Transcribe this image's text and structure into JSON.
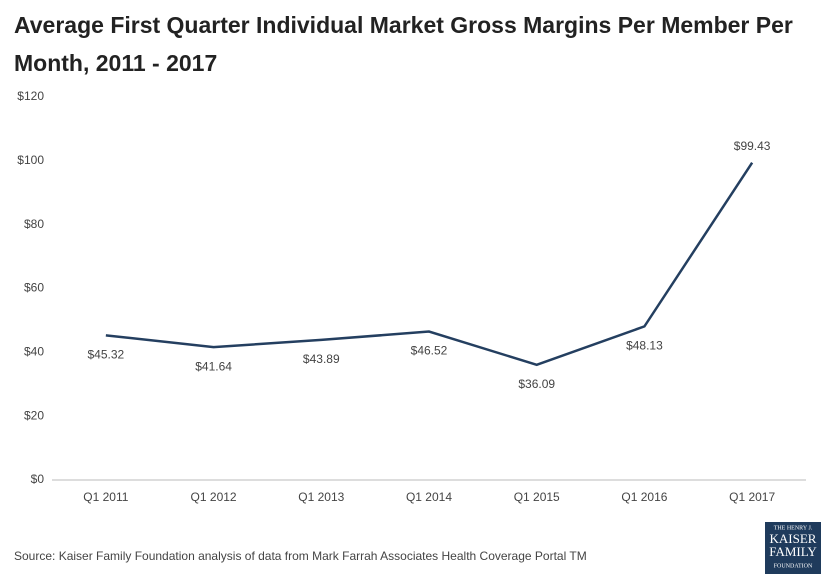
{
  "chart_data": {
    "type": "line",
    "title": "Average First Quarter Individual Market Gross Margins Per Member Per Month, 2011 - 2017",
    "categories": [
      "Q1 2011",
      "Q1 2012",
      "Q1 2013",
      "Q1 2014",
      "Q1 2015",
      "Q1 2016",
      "Q1 2017"
    ],
    "values": [
      45.32,
      41.64,
      43.89,
      46.52,
      36.09,
      48.13,
      99.43
    ],
    "value_labels": [
      "$45.32",
      "$41.64",
      "$43.89",
      "$46.52",
      "$36.09",
      "$48.13",
      "$99.43"
    ],
    "color": "#243f60",
    "ylim": [
      0,
      120
    ],
    "yticks": [
      {
        "value": 0,
        "label": "$0"
      },
      {
        "value": 20,
        "label": "$20"
      },
      {
        "value": 40,
        "label": "$40"
      },
      {
        "value": 60,
        "label": "$60"
      },
      {
        "value": 80,
        "label": "$80"
      },
      {
        "value": 100,
        "label": "$100"
      },
      {
        "value": 120,
        "label": "$120"
      }
    ],
    "grid": false,
    "source": "Source: Kaiser Family Foundation  analysis of data from Mark Farrah Associates Health Coverage Portal TM",
    "logo": [
      "THE HENRY J.",
      "KAISER",
      "FAMILY",
      "FOUNDATION"
    ]
  }
}
